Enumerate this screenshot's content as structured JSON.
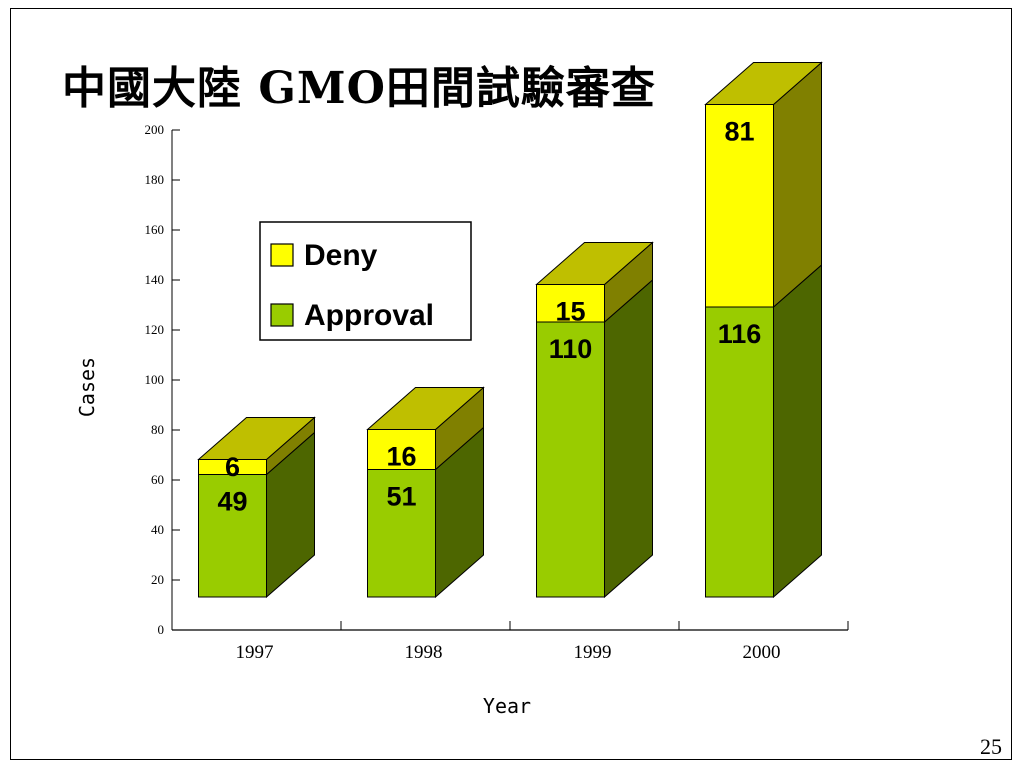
{
  "slide": {
    "title": "中國大陸 GMO田間試驗審查",
    "page_number": "25"
  },
  "chart_data": {
    "type": "bar",
    "stacked": true,
    "three_d": true,
    "categories": [
      "1997",
      "1998",
      "1999",
      "2000"
    ],
    "series": [
      {
        "name": "Approval",
        "values": [
          49,
          51,
          110,
          116
        ],
        "color": "#99cc00"
      },
      {
        "name": "Deny",
        "values": [
          6,
          16,
          15,
          81
        ],
        "color": "#ffff00"
      }
    ],
    "xlabel": "Year",
    "ylabel": "Cases",
    "ylim": [
      0,
      200
    ],
    "yticks": [
      0,
      20,
      40,
      60,
      80,
      100,
      120,
      140,
      160,
      180,
      200
    ],
    "legend_position": "upper-left",
    "grid": false
  }
}
